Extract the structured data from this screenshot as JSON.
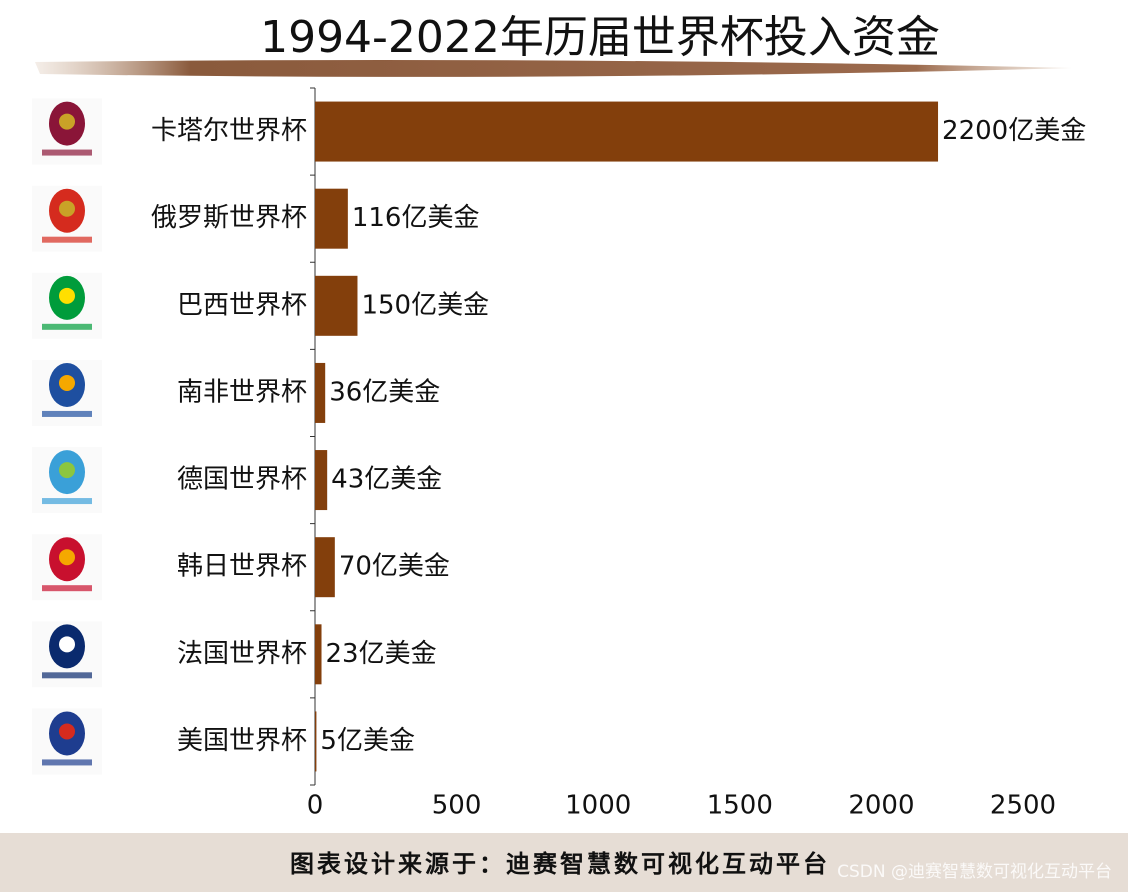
{
  "chart_data": {
    "type": "bar",
    "orientation": "horizontal",
    "title": "1994-2022年历届世界杯投入资金",
    "categories": [
      "卡塔尔世界杯",
      "俄罗斯世界杯",
      "巴西世界杯",
      "南非世界杯",
      "德国世界杯",
      "韩日世界杯",
      "法国世界杯",
      "美国世界杯"
    ],
    "values": [
      2200,
      116,
      150,
      36,
      43,
      70,
      23,
      5
    ],
    "value_labels": [
      "2200亿美金",
      "116亿美金",
      "150亿美金",
      "36亿美金",
      "43亿美金",
      "70亿美金",
      "23亿美金",
      "5亿美金"
    ],
    "color": "#833f0c",
    "xlim": [
      0,
      2500
    ],
    "xticks": [
      0,
      500,
      1000,
      1500,
      2000,
      2500
    ],
    "grid": false
  },
  "footer": {
    "text": "图表设计来源于：迪赛智慧数可视化互动平台",
    "watermark": "CSDN @迪赛智慧数可视化互动平台"
  }
}
